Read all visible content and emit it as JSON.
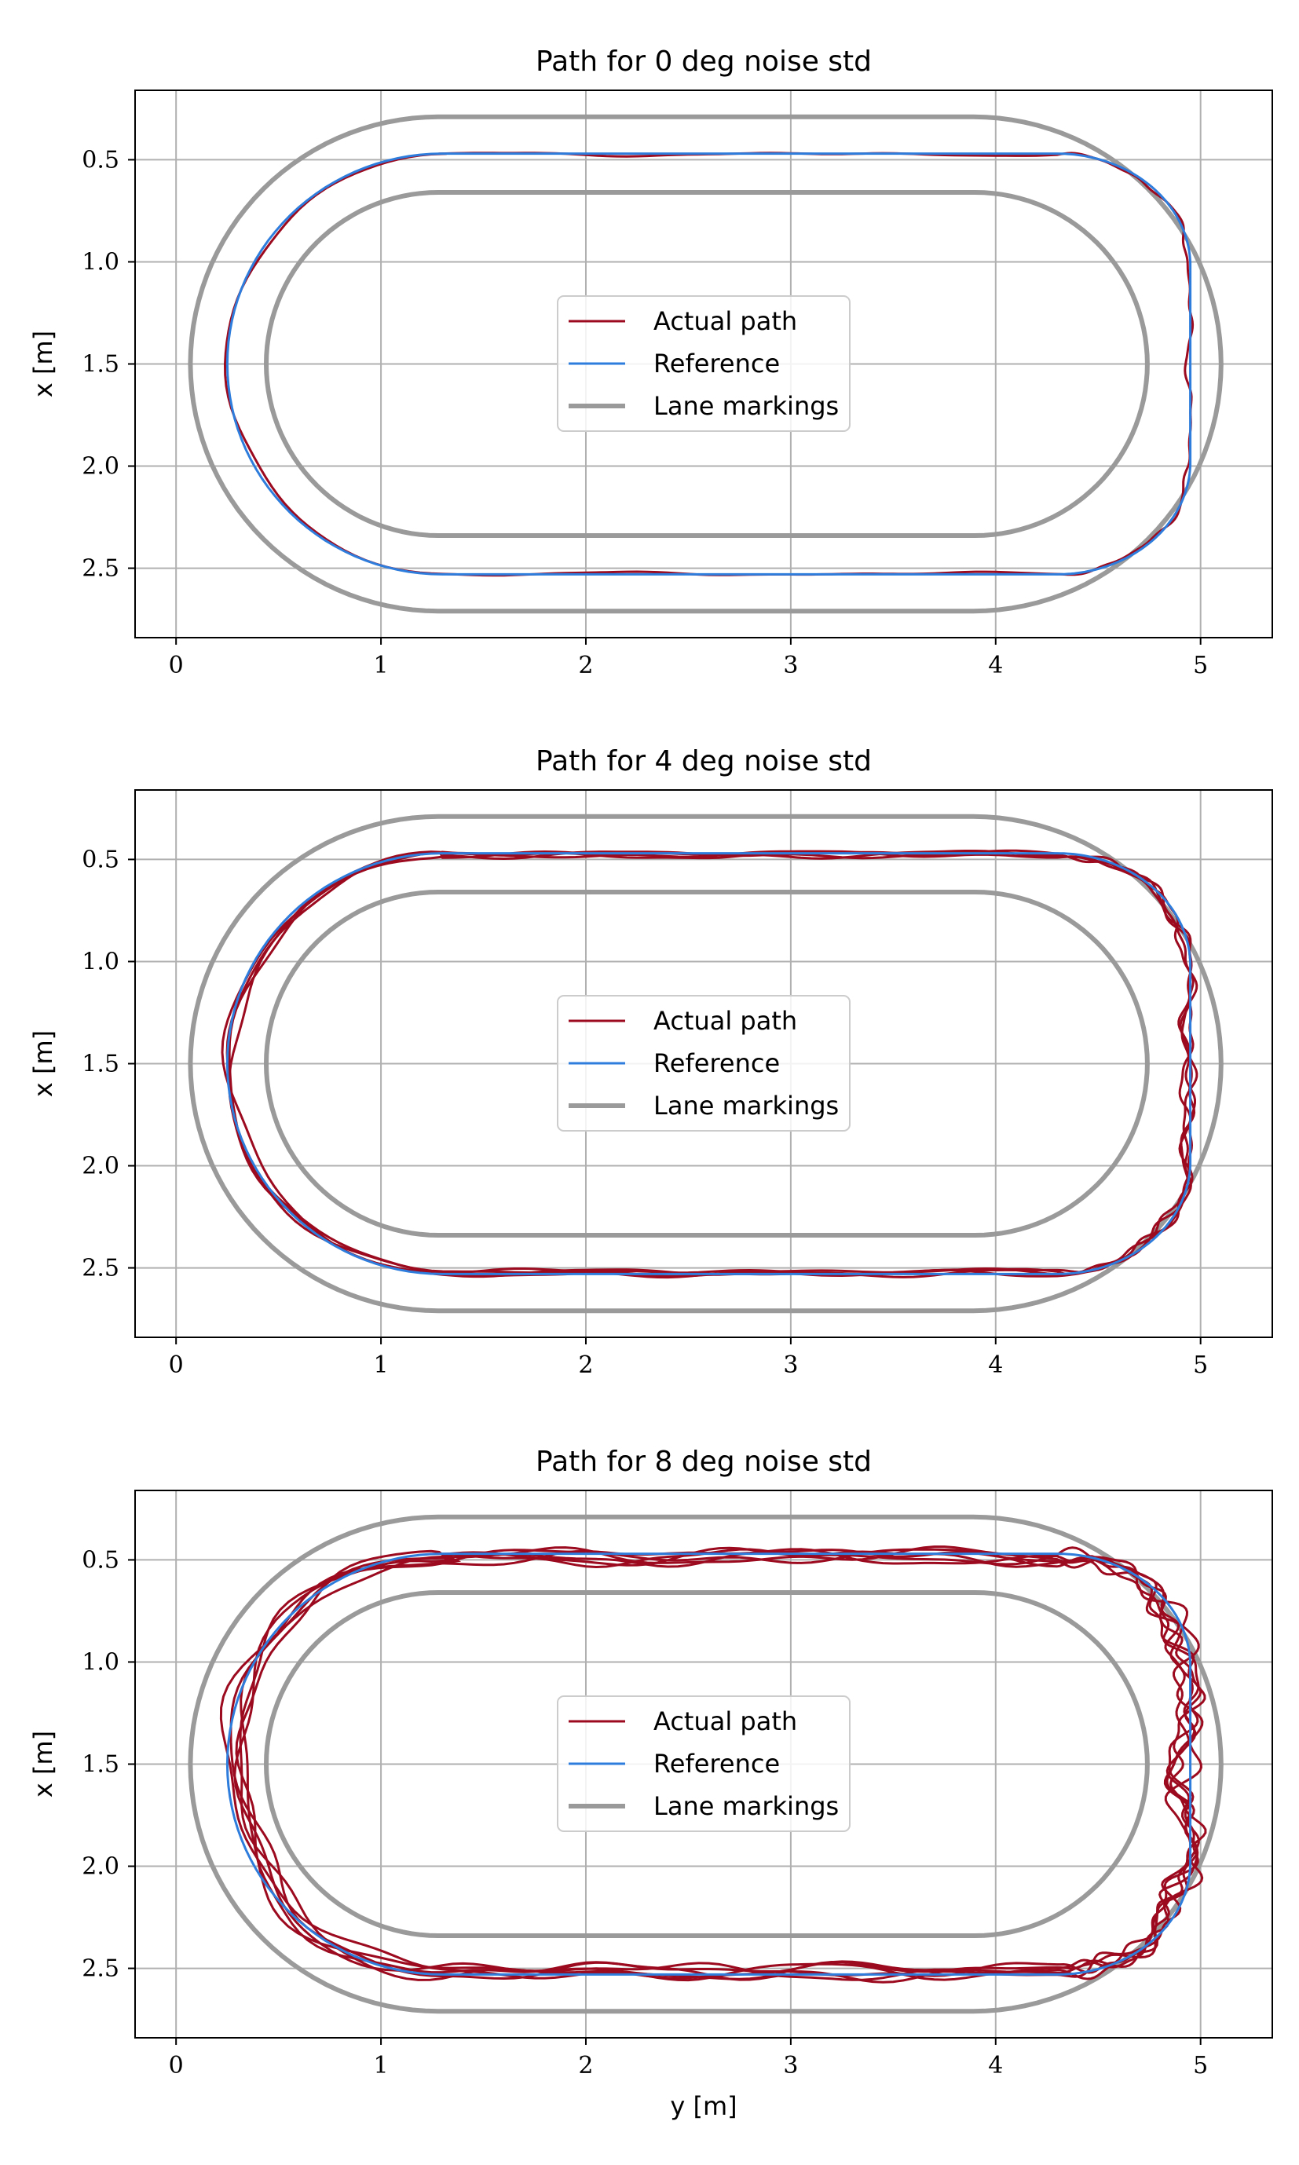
{
  "colors": {
    "actual": "#9b0a1e",
    "reference": "#2e7ddc",
    "lane": "#9a9a9a",
    "grid": "#b0b0b0",
    "axes": "#000000"
  },
  "chart_data": [
    {
      "type": "line",
      "title": "Path for 0 deg noise std",
      "xlabel": "",
      "ylabel": "x [m]",
      "xlim": [
        -0.2,
        5.35
      ],
      "ylim": [
        2.84,
        0.16
      ],
      "y_inverted": true,
      "xticks": [
        "0",
        "1",
        "2",
        "3",
        "4",
        "5"
      ],
      "yticks": [
        "0.5",
        "1.0",
        "1.5",
        "2.0",
        "2.5"
      ],
      "grid": true,
      "legend_position": "center",
      "legend": [
        "Actual path",
        "Reference",
        "Lane markings"
      ],
      "noise_deg": 0,
      "series": [
        {
          "name": "Actual path",
          "description": "closed loop tracking reference with small deviation",
          "laps": 1
        },
        {
          "name": "Reference",
          "straight_y": [
            1.3,
            4.3
          ],
          "x_top": 0.47,
          "x_bottom": 2.53,
          "left_y": 0.25,
          "right_y": 4.95
        },
        {
          "name": "Lane markings",
          "outer": {
            "y_left": 0.07,
            "y_right": 5.1,
            "x_top": 0.29,
            "x_bottom": 2.71
          },
          "inner": {
            "y_left": 0.44,
            "y_right": 4.74,
            "x_top": 0.66,
            "x_bottom": 2.34
          }
        }
      ]
    },
    {
      "type": "line",
      "title": "Path for 4 deg noise std",
      "xlabel": "",
      "ylabel": "x [m]",
      "xlim": [
        -0.2,
        5.35
      ],
      "ylim": [
        2.84,
        0.16
      ],
      "y_inverted": true,
      "xticks": [
        "0",
        "1",
        "2",
        "3",
        "4",
        "5"
      ],
      "yticks": [
        "0.5",
        "1.0",
        "1.5",
        "2.0",
        "2.5"
      ],
      "grid": true,
      "legend_position": "center",
      "legend": [
        "Actual path",
        "Reference",
        "Lane markings"
      ],
      "noise_deg": 4,
      "series": [
        {
          "name": "Actual path",
          "description": "several laps with moderate deviation",
          "laps": 4
        },
        {
          "name": "Reference",
          "straight_y": [
            1.3,
            4.3
          ],
          "x_top": 0.47,
          "x_bottom": 2.53,
          "left_y": 0.25,
          "right_y": 4.95
        },
        {
          "name": "Lane markings",
          "outer": {
            "y_left": 0.07,
            "y_right": 5.1,
            "x_top": 0.29,
            "x_bottom": 2.71
          },
          "inner": {
            "y_left": 0.44,
            "y_right": 4.74,
            "x_top": 0.66,
            "x_bottom": 2.34
          }
        }
      ]
    },
    {
      "type": "line",
      "title": "Path for 8 deg noise std",
      "xlabel": "y [m]",
      "ylabel": "x [m]",
      "xlim": [
        -0.2,
        5.35
      ],
      "ylim": [
        2.84,
        0.16
      ],
      "y_inverted": true,
      "xticks": [
        "0",
        "1",
        "2",
        "3",
        "4",
        "5"
      ],
      "yticks": [
        "0.5",
        "1.0",
        "1.5",
        "2.0",
        "2.5"
      ],
      "grid": true,
      "legend_position": "center",
      "legend": [
        "Actual path",
        "Reference",
        "Lane markings"
      ],
      "noise_deg": 8,
      "series": [
        {
          "name": "Actual path",
          "description": "several laps with larger deviation",
          "laps": 6
        },
        {
          "name": "Reference",
          "straight_y": [
            1.3,
            4.3
          ],
          "x_top": 0.47,
          "x_bottom": 2.53,
          "left_y": 0.25,
          "right_y": 4.95
        },
        {
          "name": "Lane markings",
          "outer": {
            "y_left": 0.07,
            "y_right": 5.1,
            "x_top": 0.29,
            "x_bottom": 2.71
          },
          "inner": {
            "y_left": 0.44,
            "y_right": 4.74,
            "x_top": 0.66,
            "x_bottom": 2.34
          }
        }
      ]
    }
  ]
}
